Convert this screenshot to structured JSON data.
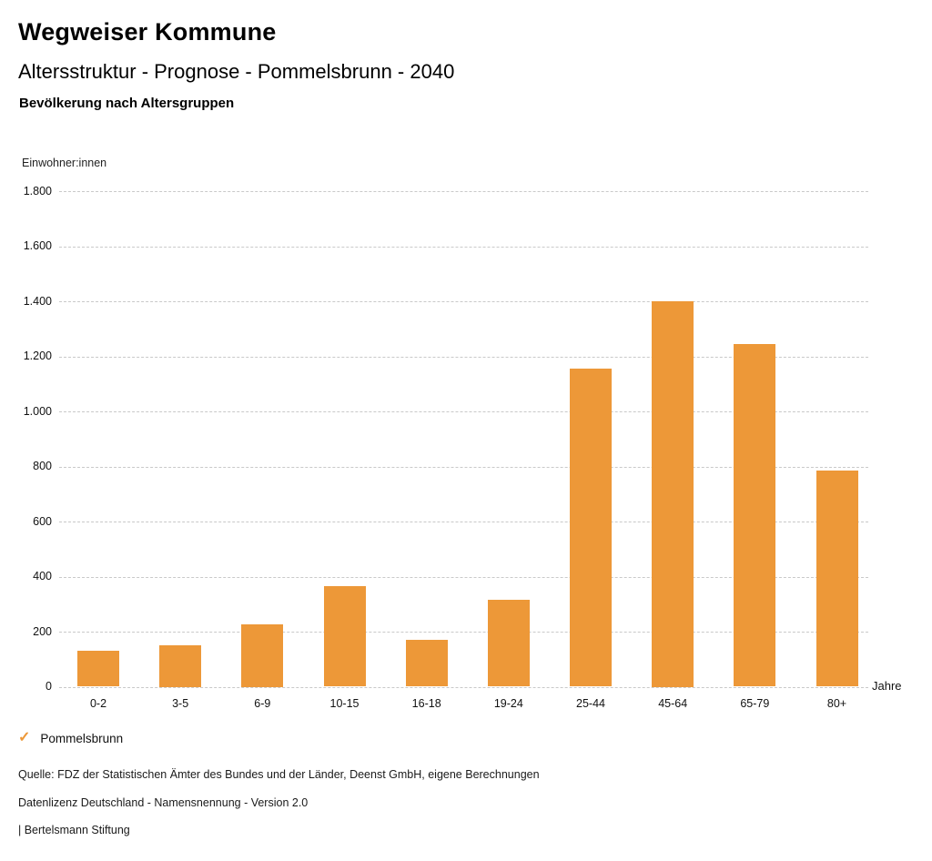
{
  "header": {
    "brand": "Wegweiser Kommune",
    "title": "Altersstruktur - Prognose - Pommelsbrunn - 2040",
    "subtitle": "Bevölkerung nach Altersgruppen"
  },
  "chart_data": {
    "type": "bar",
    "title": "Bevölkerung nach Altersgruppen",
    "series_name": "Pommelsbrunn",
    "unit_label": "Einwohner:innen",
    "xlabel": "Jahre",
    "ylabel": "Einwohner:innen",
    "categories": [
      "0-2",
      "3-5",
      "6-9",
      "10-15",
      "16-18",
      "19-24",
      "25-44",
      "45-64",
      "65-79",
      "80+"
    ],
    "values": [
      130,
      150,
      225,
      365,
      170,
      315,
      1155,
      1400,
      1245,
      785
    ],
    "ylim": [
      0,
      1800
    ],
    "ytick_step": 200,
    "yticks": [
      {
        "value": 0,
        "label": "0"
      },
      {
        "value": 200,
        "label": "200"
      },
      {
        "value": 400,
        "label": "400"
      },
      {
        "value": 600,
        "label": "600"
      },
      {
        "value": 800,
        "label": "800"
      },
      {
        "value": 1000,
        "label": "1.000"
      },
      {
        "value": 1200,
        "label": "1.200"
      },
      {
        "value": 1400,
        "label": "1.400"
      },
      {
        "value": 1600,
        "label": "1.600"
      },
      {
        "value": 1800,
        "label": "1.800"
      }
    ],
    "grid": "horizontal-dotted",
    "bar_color": "#ED9838",
    "legend_position": "bottom-left"
  },
  "legend": {
    "check_icon": "✓",
    "label": "Pommelsbrunn",
    "color": "#ED9838"
  },
  "footer": {
    "source": "Quelle: FDZ der Statistischen Ämter des Bundes und der Länder, Deenst GmbH, eigene Berechnungen",
    "license": "Datenlizenz Deutschland - Namensnennung - Version 2.0",
    "publisher": "| Bertelsmann Stiftung"
  }
}
